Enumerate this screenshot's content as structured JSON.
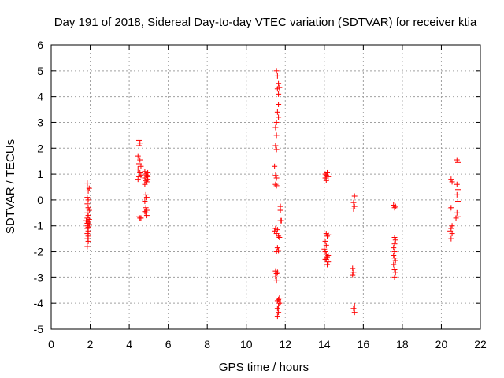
{
  "chart_data": {
    "type": "scatter",
    "title": "Day 191 of 2018, Sidereal Day-to-day VTEC variation (SDTVAR) for receiver ktia",
    "xlabel": "GPS time / hours",
    "ylabel": "SDTVAR / TECUs",
    "xlim": [
      0,
      22
    ],
    "ylim": [
      -5,
      6
    ],
    "xticks": [
      0,
      2,
      4,
      6,
      8,
      10,
      12,
      14,
      16,
      18,
      20,
      22
    ],
    "yticks": [
      -5,
      -4,
      -3,
      -2,
      -1,
      0,
      1,
      2,
      3,
      4,
      5,
      6
    ],
    "grid": true,
    "marker": "+",
    "marker_color": "#ff0000",
    "series": [
      {
        "name": "SDTVAR",
        "points": [
          [
            1.85,
            0.65
          ],
          [
            1.85,
            0.5
          ],
          [
            1.9,
            0.35
          ],
          [
            1.85,
            0.1
          ],
          [
            1.9,
            0.0
          ],
          [
            1.85,
            -0.15
          ],
          [
            1.9,
            -0.3
          ],
          [
            1.95,
            -0.4
          ],
          [
            1.85,
            -0.5
          ],
          [
            1.9,
            -0.6
          ],
          [
            1.85,
            -0.7
          ],
          [
            1.95,
            -0.75
          ],
          [
            1.8,
            -0.8
          ],
          [
            1.9,
            -0.85
          ],
          [
            1.85,
            -0.9
          ],
          [
            1.95,
            -0.95
          ],
          [
            1.85,
            -1.0
          ],
          [
            1.9,
            -1.05
          ],
          [
            1.85,
            -1.1
          ],
          [
            1.9,
            -1.2
          ],
          [
            1.85,
            -1.3
          ],
          [
            1.9,
            -1.4
          ],
          [
            1.85,
            -1.5
          ],
          [
            1.9,
            -1.6
          ],
          [
            1.85,
            -1.8
          ],
          [
            1.95,
            0.45
          ],
          [
            4.5,
            2.3
          ],
          [
            4.55,
            2.2
          ],
          [
            4.5,
            2.1
          ],
          [
            4.45,
            1.7
          ],
          [
            4.55,
            1.55
          ],
          [
            4.5,
            1.4
          ],
          [
            4.6,
            1.3
          ],
          [
            4.45,
            1.2
          ],
          [
            4.55,
            1.05
          ],
          [
            4.5,
            0.9
          ],
          [
            4.45,
            0.8
          ],
          [
            4.6,
            0.95
          ],
          [
            4.5,
            -0.65
          ],
          [
            4.55,
            -0.7
          ],
          [
            4.6,
            -0.7
          ],
          [
            4.8,
            1.1
          ],
          [
            4.85,
            1.0
          ],
          [
            4.9,
            0.95
          ],
          [
            4.8,
            0.85
          ],
          [
            4.85,
            0.75
          ],
          [
            4.9,
            0.7
          ],
          [
            4.8,
            0.6
          ],
          [
            4.95,
            1.05
          ],
          [
            4.85,
            0.2
          ],
          [
            4.9,
            0.1
          ],
          [
            4.8,
            -0.05
          ],
          [
            4.85,
            -0.3
          ],
          [
            4.9,
            -0.4
          ],
          [
            4.8,
            -0.45
          ],
          [
            4.85,
            -0.5
          ],
          [
            4.9,
            -0.6
          ],
          [
            4.95,
            0.9
          ],
          [
            4.95,
            0.8
          ],
          [
            11.55,
            5.0
          ],
          [
            11.6,
            4.8
          ],
          [
            11.65,
            4.5
          ],
          [
            11.6,
            4.3
          ],
          [
            11.65,
            4.1
          ],
          [
            11.7,
            4.35
          ],
          [
            11.65,
            3.7
          ],
          [
            11.6,
            3.4
          ],
          [
            11.65,
            3.2
          ],
          [
            11.55,
            3.0
          ],
          [
            11.5,
            2.8
          ],
          [
            11.55,
            2.5
          ],
          [
            11.5,
            2.1
          ],
          [
            11.55,
            1.95
          ],
          [
            11.45,
            1.3
          ],
          [
            11.5,
            0.95
          ],
          [
            11.55,
            0.85
          ],
          [
            11.5,
            0.6
          ],
          [
            11.55,
            0.55
          ],
          [
            11.75,
            -0.25
          ],
          [
            11.75,
            -0.4
          ],
          [
            11.75,
            -0.8
          ],
          [
            11.8,
            -0.8
          ],
          [
            11.5,
            -1.1
          ],
          [
            11.45,
            -1.2
          ],
          [
            11.55,
            -1.3
          ],
          [
            11.6,
            -1.15
          ],
          [
            11.65,
            -1.4
          ],
          [
            11.7,
            -1.45
          ],
          [
            11.6,
            -1.85
          ],
          [
            11.65,
            -1.95
          ],
          [
            11.55,
            -2.0
          ],
          [
            11.5,
            -2.75
          ],
          [
            11.55,
            -2.85
          ],
          [
            11.6,
            -2.8
          ],
          [
            11.5,
            -2.95
          ],
          [
            11.55,
            -3.1
          ],
          [
            11.7,
            -3.8
          ],
          [
            11.65,
            -3.85
          ],
          [
            11.6,
            -3.9
          ],
          [
            11.7,
            -4.0
          ],
          [
            11.65,
            -4.1
          ],
          [
            11.6,
            -4.2
          ],
          [
            11.65,
            -4.35
          ],
          [
            11.6,
            -4.5
          ],
          [
            11.75,
            -3.95
          ],
          [
            14.05,
            1.0
          ],
          [
            14.1,
            0.95
          ],
          [
            14.15,
            1.05
          ],
          [
            14.05,
            0.85
          ],
          [
            14.1,
            0.75
          ],
          [
            14.2,
            0.9
          ],
          [
            14.1,
            -1.3
          ],
          [
            14.15,
            -1.4
          ],
          [
            14.2,
            -1.35
          ],
          [
            14.05,
            -1.6
          ],
          [
            14.1,
            -1.75
          ],
          [
            14.0,
            -1.9
          ],
          [
            14.05,
            -2.0
          ],
          [
            14.1,
            -2.1
          ],
          [
            14.15,
            -2.2
          ],
          [
            14.1,
            -2.3
          ],
          [
            14.2,
            -2.4
          ],
          [
            14.15,
            -2.5
          ],
          [
            14.05,
            -2.3
          ],
          [
            14.2,
            -2.15
          ],
          [
            15.55,
            0.15
          ],
          [
            15.5,
            -0.1
          ],
          [
            15.55,
            -0.25
          ],
          [
            15.5,
            -0.35
          ],
          [
            15.45,
            -2.65
          ],
          [
            15.5,
            -2.8
          ],
          [
            15.45,
            -2.9
          ],
          [
            15.55,
            -4.1
          ],
          [
            15.5,
            -4.2
          ],
          [
            15.55,
            -4.35
          ],
          [
            17.55,
            -0.2
          ],
          [
            17.6,
            -0.3
          ],
          [
            17.65,
            -0.25
          ],
          [
            17.6,
            -1.45
          ],
          [
            17.65,
            -1.55
          ],
          [
            17.6,
            -1.7
          ],
          [
            17.55,
            -1.85
          ],
          [
            17.6,
            -2.0
          ],
          [
            17.55,
            -2.15
          ],
          [
            17.6,
            -2.25
          ],
          [
            17.65,
            -2.35
          ],
          [
            17.55,
            -2.5
          ],
          [
            17.6,
            -2.7
          ],
          [
            17.65,
            -2.8
          ],
          [
            17.6,
            -3.0
          ],
          [
            20.5,
            0.8
          ],
          [
            20.55,
            0.7
          ],
          [
            20.5,
            -0.3
          ],
          [
            20.45,
            -0.35
          ],
          [
            20.55,
            -1.0
          ],
          [
            20.5,
            -1.1
          ],
          [
            20.45,
            -1.2
          ],
          [
            20.55,
            -1.3
          ],
          [
            20.5,
            -1.5
          ],
          [
            20.8,
            1.55
          ],
          [
            20.85,
            1.45
          ],
          [
            20.8,
            0.6
          ],
          [
            20.85,
            0.4
          ],
          [
            20.8,
            0.2
          ],
          [
            20.85,
            -0.05
          ],
          [
            20.8,
            -0.5
          ],
          [
            20.85,
            -0.65
          ],
          [
            20.75,
            -0.7
          ]
        ]
      }
    ]
  }
}
